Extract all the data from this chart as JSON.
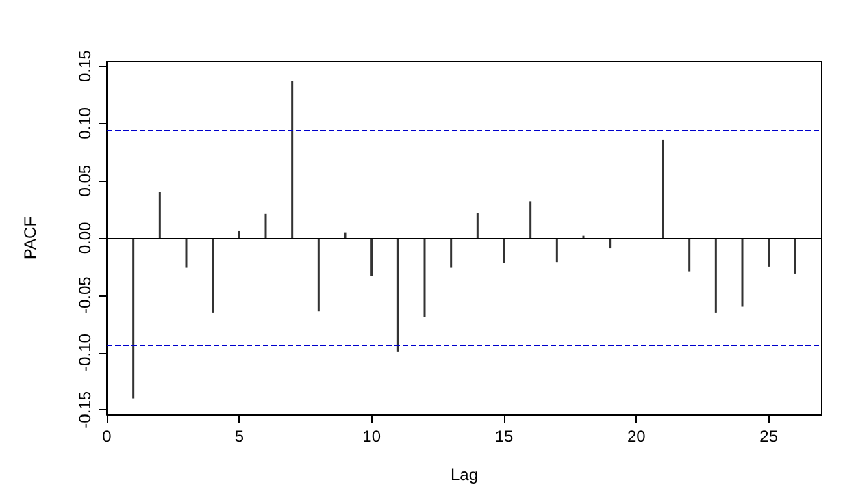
{
  "chart_data": {
    "type": "bar",
    "xlabel": "Lag",
    "ylabel": "PACF",
    "x": [
      1,
      2,
      3,
      4,
      5,
      6,
      7,
      8,
      9,
      10,
      11,
      12,
      13,
      14,
      15,
      16,
      17,
      18,
      19,
      20,
      21,
      22,
      23,
      24,
      25,
      26
    ],
    "values": [
      -0.14,
      0.04,
      -0.026,
      -0.065,
      0.006,
      0.021,
      0.137,
      -0.064,
      0.005,
      -0.033,
      -0.099,
      -0.069,
      -0.026,
      0.022,
      -0.022,
      0.032,
      -0.021,
      0.002,
      -0.009,
      0,
      0.086,
      -0.029,
      -0.065,
      -0.06,
      -0.025,
      -0.031
    ],
    "color": "#333333",
    "xlim": [
      0,
      27
    ],
    "xticks": [
      0,
      5,
      10,
      15,
      20,
      25
    ],
    "ylim": [
      -0.154,
      0.154
    ],
    "yticks": [
      {
        "value": -0.15,
        "label": "-0.15"
      },
      {
        "value": -0.1,
        "label": "-0.10"
      },
      {
        "value": -0.05,
        "label": "-0.05"
      },
      {
        "value": 0,
        "label": "0.00"
      },
      {
        "value": 0.05,
        "label": "0.05"
      },
      {
        "value": 0.1,
        "label": "0.10"
      },
      {
        "value": 0.15,
        "label": "0.15"
      }
    ],
    "ref_lines": [
      {
        "axis": "y",
        "value": 0,
        "color": "#000000",
        "line_style": "solid"
      },
      {
        "axis": "y",
        "value": 0.094,
        "color": "#0000cc",
        "line_style": "dashed"
      },
      {
        "axis": "y",
        "value": -0.094,
        "color": "#0000cc",
        "line_style": "dashed"
      }
    ],
    "grid": false
  }
}
